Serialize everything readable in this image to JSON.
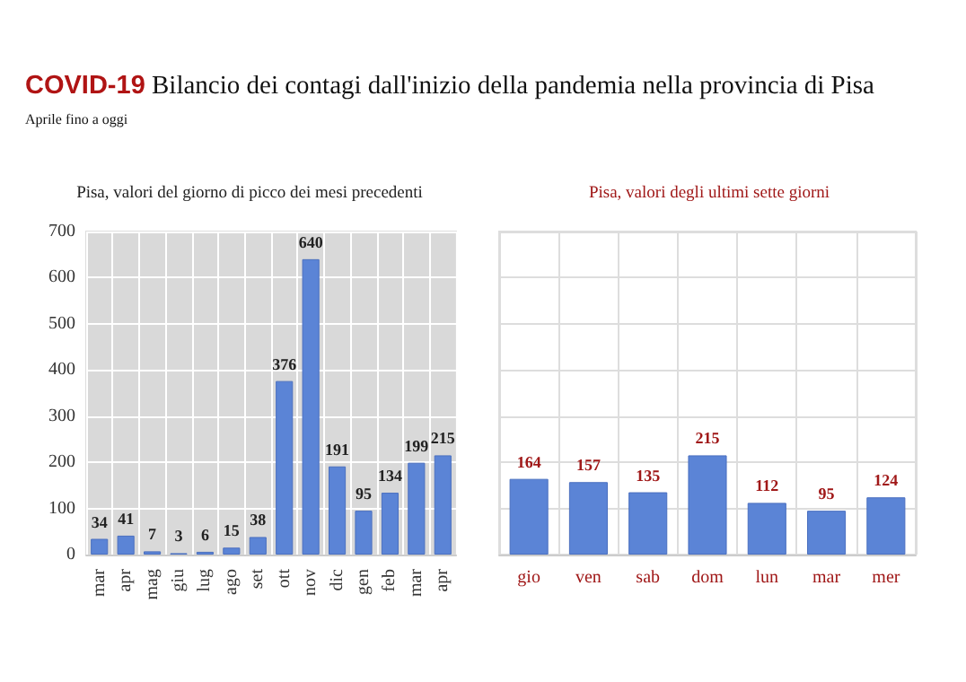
{
  "chart_data": [
    {
      "type": "bar",
      "title": "COVID-19 Bilancio dei contagi dall'inizio della pandemia nella provincia di Pisa",
      "subtitle": "Aprile fino a oggi",
      "annotations": [
        "Pisa, valori del giorno di picco dei mesi precedenti"
      ],
      "categories": [
        "mar",
        "apr",
        "mag",
        "giu",
        "lug",
        "ago",
        "set",
        "ott",
        "nov",
        "dic",
        "gen",
        "feb",
        "mar",
        "apr"
      ],
      "values": [
        34,
        41,
        7,
        3,
        6,
        15,
        38,
        376,
        640,
        191,
        95,
        134,
        199,
        215
      ],
      "color": "#5b84d6",
      "ylim": [
        0,
        700
      ],
      "yticks": [
        0,
        100,
        200,
        300,
        400,
        500,
        600,
        700
      ],
      "grid": true,
      "data_labels": true
    },
    {
      "type": "bar",
      "title": "Pisa, valori degli ultimi sette giorni",
      "categories": [
        "gio",
        "ven",
        "sab",
        "dom",
        "lun",
        "mar",
        "mer"
      ],
      "values": [
        164,
        157,
        135,
        215,
        112,
        95,
        124
      ],
      "color": "#5b84d6",
      "ylim": [
        0,
        700
      ],
      "yticks": [
        {
          "value": 0,
          "label": null
        },
        {
          "value": 100,
          "label": null
        },
        {
          "value": 200,
          "label": null
        },
        {
          "value": 300,
          "label": null
        },
        {
          "value": 400,
          "label": null
        },
        {
          "value": 500,
          "label": null
        },
        {
          "value": 600,
          "label": null
        },
        {
          "value": 700,
          "label": null
        }
      ],
      "tick_labels": "x",
      "grid": true,
      "data_labels": true
    }
  ]
}
